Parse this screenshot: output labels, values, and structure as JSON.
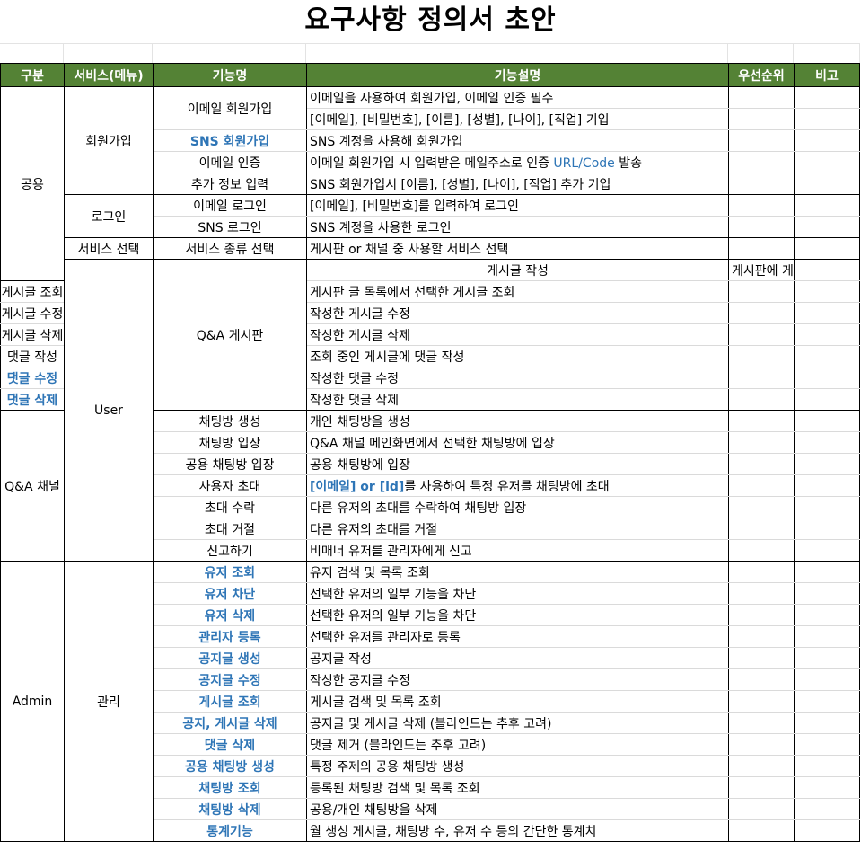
{
  "title": "요구사항 정의서 초안",
  "headers": [
    "구분",
    "서비스(메뉴)",
    "기능명",
    "기능설명",
    "우선순위",
    "비고"
  ],
  "groups": {
    "common": "공용",
    "user": "User",
    "admin": "Admin"
  },
  "services": {
    "signup": "회원가입",
    "login": "로그인",
    "select": "서비스 선택",
    "qna_board": "Q&A 게시판",
    "qna_channel": "Q&A 채널",
    "manage": "관리"
  },
  "rows": [
    {
      "name": "이메일 회원가입",
      "desc1": "이메일을 사용하여 회원가입, 이메일 인증 필수",
      "desc2": "[이메일], [비밀번호], [이름], [성별], [나이], [직업] 기입"
    },
    {
      "name": "SNS 회원가입",
      "desc": "SNS 계정을 사용해 회원가입"
    },
    {
      "name": "이메일 인증",
      "desc_a": "이메일 회원가입 시 입력받은 메일주소로 인증 ",
      "desc_b": "URL/Code",
      "desc_c": " 발송"
    },
    {
      "name": "추가 정보 입력",
      "desc": "SNS 회원가입시 [이름], [성별], [나이], [직업] 추가 기입"
    },
    {
      "name": "이메일 로그인",
      "desc": "[이메일], [비밀번호]를 입력하여 로그인"
    },
    {
      "name": "SNS 로그인",
      "desc": "SNS 계정을 사용한 로그인"
    },
    {
      "name": "서비스 종류 선택",
      "desc": "게시판 or 채널 중 사용할 서비스 선택"
    },
    {
      "name": "게시글 작성",
      "desc": "게시판에 게시글 작성"
    },
    {
      "name": "게시글 조회",
      "desc": "게시판 글 목록에서 선택한 게시글 조회"
    },
    {
      "name": "게시글 수정",
      "desc": "작성한 게시글 수정"
    },
    {
      "name": "게시글 삭제",
      "desc": "작성한 게시글 삭제"
    },
    {
      "name": "댓글 작성",
      "desc": "조회 중인 게시글에 댓글 작성"
    },
    {
      "name": "댓글 수정",
      "desc": "작성한 댓글 수정"
    },
    {
      "name": "댓글 삭제",
      "desc": "작성한 댓글 삭제"
    },
    {
      "name": "채팅방 생성",
      "desc": "개인 채팅방을 생성"
    },
    {
      "name": "채팅방 입장",
      "desc": "Q&A 채널 메인화면에서 선택한 채팅방에 입장"
    },
    {
      "name": "공용 채팅방 입장",
      "desc": "공용 채팅방에 입장"
    },
    {
      "name": "사용자 초대",
      "desc_a": "[이메일] or [id]",
      "desc_b": "를 사용하여 특정 유저를 채팅방에 초대"
    },
    {
      "name": "초대 수락",
      "desc": "다른 유저의 초대를 수락하여 채팅방 입장"
    },
    {
      "name": "초대 거절",
      "desc": "다른 유저의 초대를 거절"
    },
    {
      "name": "신고하기",
      "desc": "비매너 유저를 관리자에게 신고"
    },
    {
      "name": "유저 조회",
      "desc": "유저 검색 및 목록 조회"
    },
    {
      "name": "유저 차단",
      "desc": "선택한 유저의 일부 기능을 차단"
    },
    {
      "name": "유저 삭제",
      "desc": "선택한 유저의 일부 기능을 차단"
    },
    {
      "name": "관리자 등록",
      "desc": "선택한 유저를 관리자로 등록"
    },
    {
      "name": "공지글 생성",
      "desc": "공지글 작성"
    },
    {
      "name": "공지글 수정",
      "desc": "작성한 공지글 수정"
    },
    {
      "name": "게시글 조회",
      "desc": "게시글 검색 및 목록 조회"
    },
    {
      "name": "공지, 게시글 삭제",
      "desc": "공지글 및 게시글 삭제 (블라인드는 추후 고려)"
    },
    {
      "name": "댓글 삭제",
      "desc": "댓글 제거 (블라인드는 추후 고려)"
    },
    {
      "name": "공용 채팅방 생성",
      "desc": "특정 주제의 공용 채팅방 생성"
    },
    {
      "name": "채팅방 조회",
      "desc": "등록된 채팅방 검색 및 목록 조회"
    },
    {
      "name": "채팅방 삭제",
      "desc": "공용/개인 채팅방을 삭제"
    },
    {
      "name": "통계기능",
      "desc": "월 생성 게시글, 채팅방 수, 유저 수 등의 간단한 통계치"
    }
  ],
  "colors": {
    "header_bg": "#548235",
    "highlight": "#2e75b6"
  }
}
